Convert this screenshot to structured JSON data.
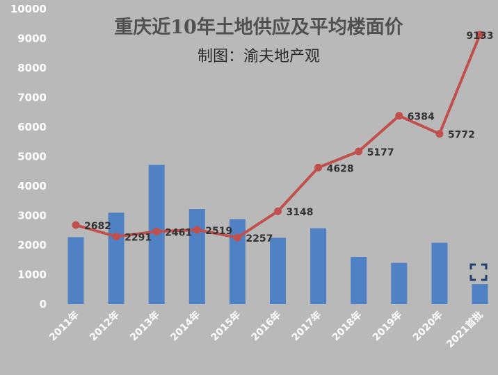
{
  "chart_data": {
    "type": "bar",
    "title": "重庆近10年土地供应及平均楼面价",
    "subtitle": "制图：渝夫地产观",
    "categories": [
      "2011年",
      "2012年",
      "2013年",
      "2014年",
      "2015年",
      "2016年",
      "2017年",
      "2018年",
      "2019年",
      "2020年",
      "2021首批"
    ],
    "ylim": [
      0,
      10000
    ],
    "yticks": [
      0,
      1000,
      2000,
      3000,
      4000,
      5000,
      6000,
      7000,
      8000,
      9000,
      10000
    ],
    "grid": false,
    "series": [
      {
        "type": "bar",
        "color": "#4f81c4",
        "values": [
          2270,
          3100,
          4720,
          3220,
          2880,
          2250,
          2570,
          1600,
          1400,
          2080,
          680
        ]
      },
      {
        "type": "line",
        "color": "#c0504d",
        "values": [
          2682,
          2291,
          2461,
          2519,
          2257,
          3148,
          4628,
          5177,
          6384,
          5772,
          9133
        ]
      }
    ],
    "data_labels": [
      "2682",
      "2291",
      "2461",
      "2519",
      "2257",
      "3148",
      "4628",
      "5177",
      "6384",
      "5772",
      "9133"
    ]
  }
}
